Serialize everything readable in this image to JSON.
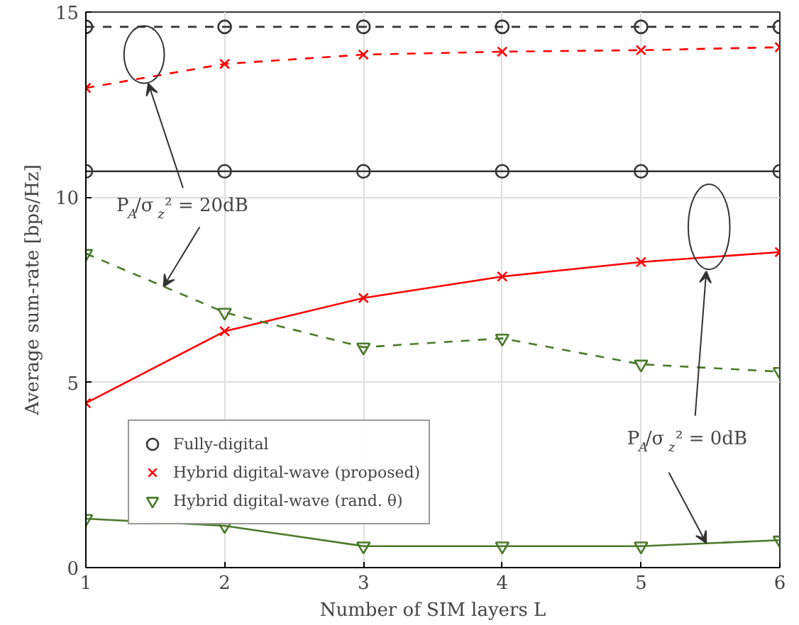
{
  "chart_data": {
    "type": "line",
    "xlabel": "Number of SIM layers L",
    "ylabel": "Average sum-rate [bps/Hz]",
    "x": [
      1,
      2,
      3,
      4,
      5,
      6
    ],
    "xlim": [
      1,
      6
    ],
    "xticks": [
      1,
      2,
      3,
      4,
      5,
      6
    ],
    "ylim": [
      0,
      15
    ],
    "yticks": [
      0,
      5,
      10,
      15
    ],
    "grid": true,
    "legend": "bottom left",
    "series": [
      {
        "name": "Fully-digital",
        "color": "#333333",
        "marker": "circle",
        "line_style": "solid",
        "values": [
          10.7,
          10.7,
          10.7,
          10.7,
          10.7,
          10.7
        ]
      },
      {
        "color": "#333333",
        "marker": "circle",
        "line_style": "dashed",
        "values": [
          14.6,
          14.6,
          14.6,
          14.6,
          14.6,
          14.6
        ]
      },
      {
        "name": "Hybrid digital-wave (proposed)",
        "color": "#ff0000",
        "marker": "cross",
        "line_style": "solid",
        "values": [
          4.44,
          6.38,
          7.28,
          7.86,
          8.25,
          8.52
        ]
      },
      {
        "color": "#ff0000",
        "marker": "cross",
        "line_style": "dashed",
        "values": [
          12.95,
          13.6,
          13.85,
          13.93,
          13.97,
          14.05
        ]
      },
      {
        "name": "Hybrid digital-wave (rand. θ)",
        "color": "#4a7a2a",
        "marker": "triangle",
        "line_style": "solid",
        "values": [
          1.32,
          1.13,
          0.58,
          0.58,
          0.58,
          0.74
        ]
      },
      {
        "color": "#4a7a2a",
        "marker": "triangle",
        "line_style": "dashed",
        "values": [
          8.48,
          6.89,
          5.95,
          6.19,
          5.49,
          5.29
        ]
      }
    ],
    "annotations": [
      {
        "text": "P$_{A}$/σ$_{z}$² = 20dB",
        "x": 1.56,
        "y": 7.59
      },
      {
        "text": "P$_{A}$/σ$_{z}$² = 0dB",
        "x": 5.47,
        "y": 0.66
      }
    ]
  }
}
